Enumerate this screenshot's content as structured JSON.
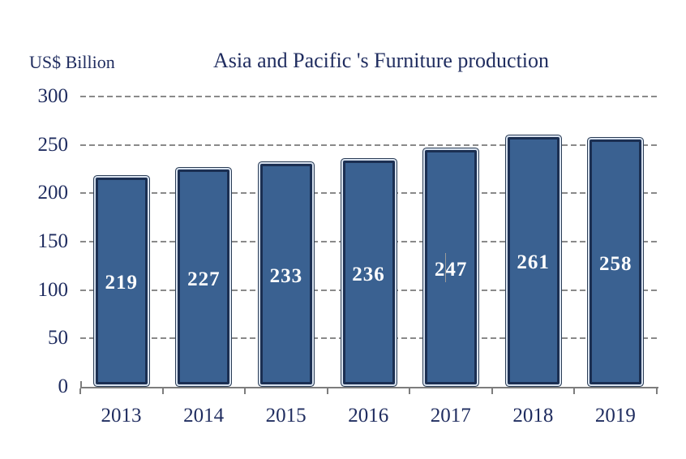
{
  "chart_data": {
    "type": "bar",
    "title": "Asia and Pacific 's Furniture production",
    "ylabel": "US$ Billion",
    "xlabel": "",
    "categories": [
      "2013",
      "2014",
      "2015",
      "2016",
      "2017",
      "2018",
      "2019"
    ],
    "values": [
      219,
      227,
      233,
      236,
      247,
      261,
      258
    ],
    "ylim": [
      0,
      300
    ],
    "yticks": [
      0,
      50,
      100,
      150,
      200,
      250,
      300
    ],
    "grid": "horizontal-dashed",
    "legend": "none",
    "bar_label_position": "center",
    "colors": {
      "bar_fill": "#3a6191",
      "bar_border": "#1b2f52",
      "bar_outer_line": "#2b3d56",
      "bar_inner_highlight": "#d9e3f0",
      "bar_label_text": "#ffffff",
      "axis_text": "#1f2c5f",
      "gridline": "#8a8a8a",
      "axis_line": "#7d7d7d",
      "background": "#ffffff"
    }
  }
}
